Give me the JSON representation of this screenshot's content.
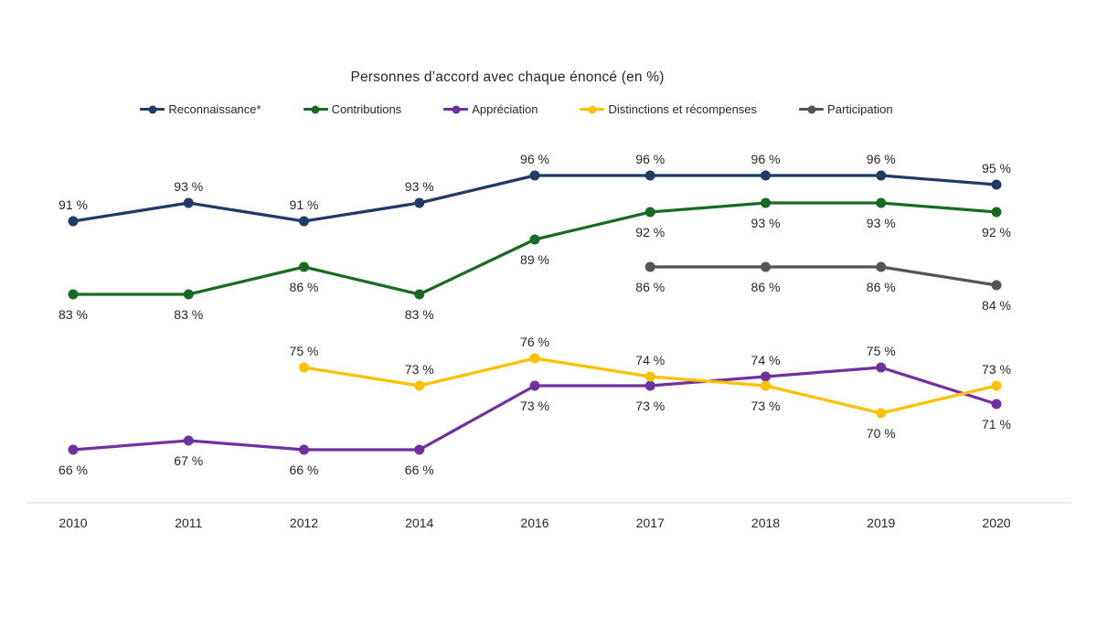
{
  "chart_data": {
    "type": "line",
    "title": "Personnes d’accord avec chaque énoncé (en %)",
    "categories": [
      "2010",
      "2011",
      "2012",
      "2014",
      "2016",
      "2017",
      "2018",
      "2019",
      "2020"
    ],
    "value_suffix": " %",
    "ylim": [
      60,
      100
    ],
    "grid": false,
    "legend_position": "top",
    "axis_line_color": "#D9D9D9",
    "text_color": "#262626",
    "series": [
      {
        "name": "Reconnaissance*",
        "color": "#1F3B66",
        "values": [
          91,
          93,
          91,
          93,
          96,
          96,
          96,
          96,
          95
        ],
        "label_placement": [
          "above",
          "above",
          "above",
          "above",
          "above",
          "above",
          "above",
          "above",
          "above"
        ]
      },
      {
        "name": "Contributions",
        "color": "#196B24",
        "values": [
          83,
          83,
          86,
          83,
          89,
          92,
          93,
          93,
          92
        ],
        "label_placement": [
          "below",
          "below",
          "below",
          "below",
          "below",
          "below",
          "below",
          "below",
          "below"
        ]
      },
      {
        "name": "Appréciation",
        "color": "#7030A0",
        "values": [
          66,
          67,
          66,
          66,
          73,
          73,
          74,
          75,
          71
        ],
        "label_placement": [
          "below",
          "below",
          "below",
          "below",
          "below",
          "below",
          "above",
          "above",
          "below"
        ]
      },
      {
        "name": "Distinctions et récompenses",
        "color": "#FFC000",
        "values": [
          null,
          null,
          75,
          73,
          76,
          74,
          73,
          70,
          73
        ],
        "label_placement": [
          null,
          null,
          "above",
          "above",
          "above",
          "above",
          "below",
          "below",
          "above"
        ]
      },
      {
        "name": "Participation",
        "color": "#545454",
        "values": [
          null,
          null,
          null,
          null,
          null,
          86,
          86,
          86,
          84
        ],
        "label_placement": [
          null,
          null,
          null,
          null,
          null,
          "below",
          "below",
          "below",
          "below"
        ]
      }
    ]
  }
}
